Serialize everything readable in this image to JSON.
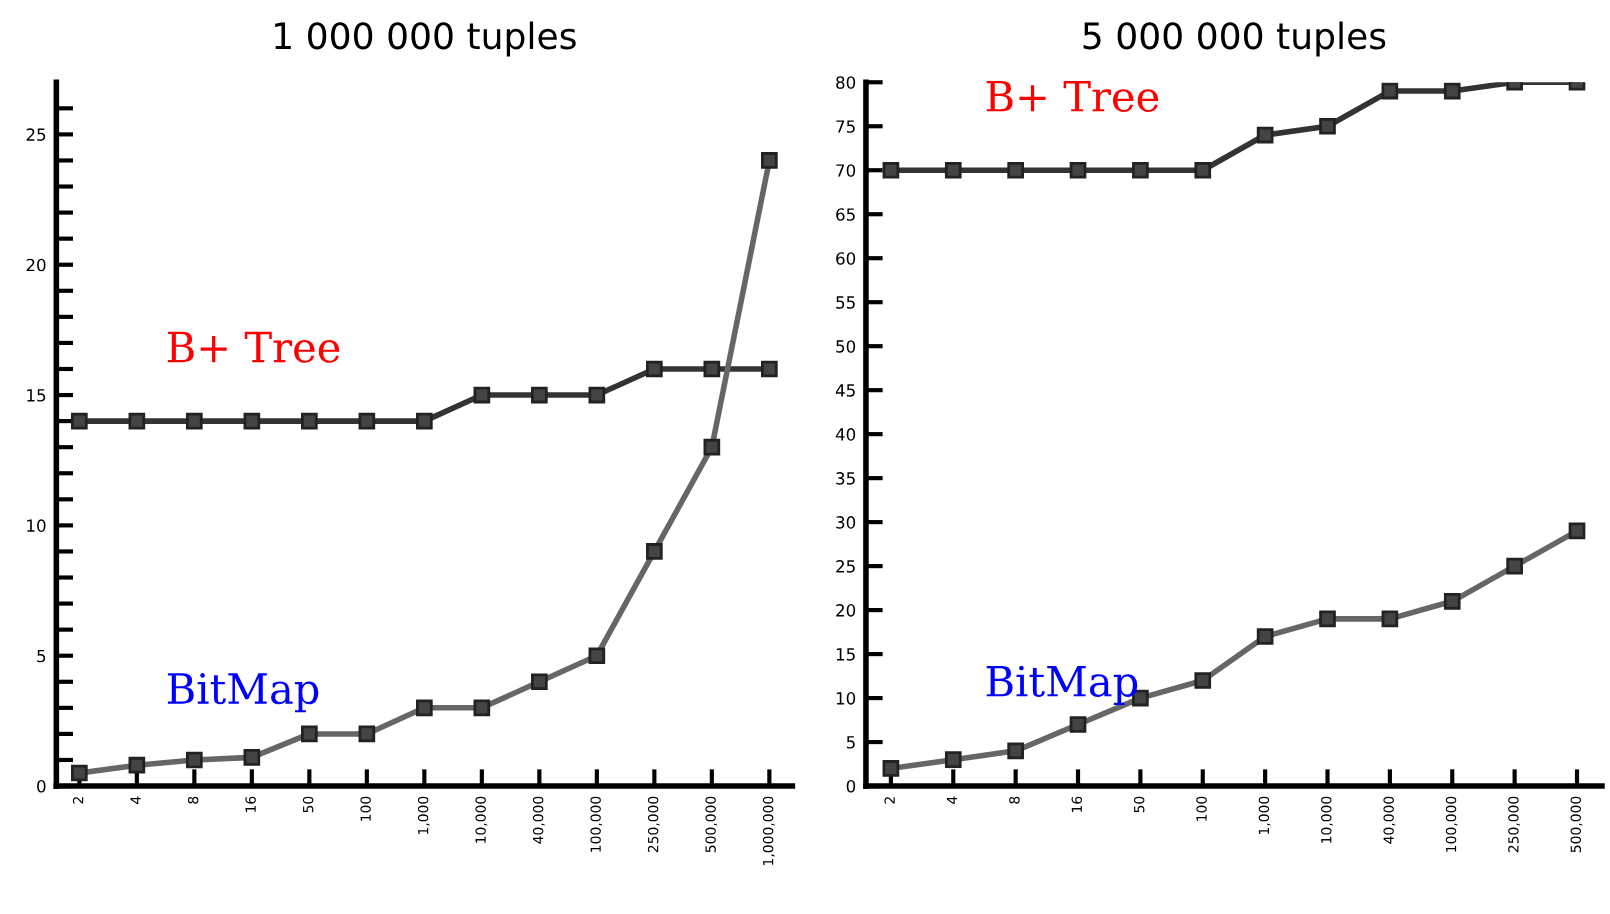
{
  "chart_data": [
    {
      "type": "line",
      "title": "1 000 000 tuples",
      "categories": [
        "2",
        "4",
        "8",
        "16",
        "50",
        "100",
        "1,000",
        "10,000",
        "40,000",
        "100,000",
        "250,000",
        "500,000",
        "1,000,000"
      ],
      "series": [
        {
          "name": "B+ Tree",
          "color": "#333333",
          "values": [
            14,
            14,
            14,
            14,
            14,
            14,
            14,
            15,
            15,
            15,
            16,
            16,
            16
          ]
        },
        {
          "name": "BitMap",
          "color": "#666666",
          "values": [
            0.5,
            0.8,
            1,
            1.1,
            2,
            2,
            3,
            3,
            4,
            5,
            9,
            13,
            24
          ]
        }
      ],
      "ylim": [
        0,
        27
      ],
      "yticks": [
        0,
        {
          "value": 1,
          "label": null
        },
        {
          "value": 2,
          "label": null
        },
        {
          "value": 3,
          "label": null
        },
        {
          "value": 4,
          "label": null
        },
        5,
        {
          "value": 6,
          "label": null
        },
        {
          "value": 7,
          "label": null
        },
        {
          "value": 8,
          "label": null
        },
        {
          "value": 9,
          "label": null
        },
        10,
        {
          "value": 11,
          "label": null
        },
        {
          "value": 12,
          "label": null
        },
        {
          "value": 13,
          "label": null
        },
        {
          "value": 14,
          "label": null
        },
        15,
        {
          "value": 16,
          "label": null
        },
        {
          "value": 17,
          "label": null
        },
        {
          "value": 18,
          "label": null
        },
        {
          "value": 19,
          "label": null
        },
        20,
        {
          "value": 21,
          "label": null
        },
        {
          "value": 22,
          "label": null
        },
        {
          "value": 23,
          "label": null
        },
        {
          "value": 24,
          "label": null
        },
        25,
        {
          "value": 26,
          "label": null
        }
      ],
      "marker": "square",
      "line_style": "solid",
      "grid": false,
      "legend": false
    },
    {
      "type": "line",
      "title": "5 000 000 tuples",
      "categories": [
        "2",
        "4",
        "8",
        "16",
        "50",
        "100",
        "1,000",
        "10,000",
        "40,000",
        "100,000",
        "250,000",
        "500,000"
      ],
      "series": [
        {
          "name": "B+ Tree",
          "color": "#333333",
          "values": [
            70,
            70,
            70,
            70,
            70,
            70,
            74,
            75,
            79,
            79,
            80,
            80
          ]
        },
        {
          "name": "BitMap",
          "color": "#666666",
          "values": [
            2,
            3,
            4,
            7,
            10,
            12,
            17,
            19,
            19,
            21,
            25,
            29
          ]
        }
      ],
      "ylim": [
        0,
        80
      ],
      "yticks": [
        0,
        5,
        10,
        15,
        20,
        25,
        30,
        35,
        40,
        45,
        50,
        55,
        60,
        65,
        70,
        75,
        80
      ],
      "marker": "square",
      "line_style": "solid",
      "grid": false,
      "legend": false
    }
  ]
}
